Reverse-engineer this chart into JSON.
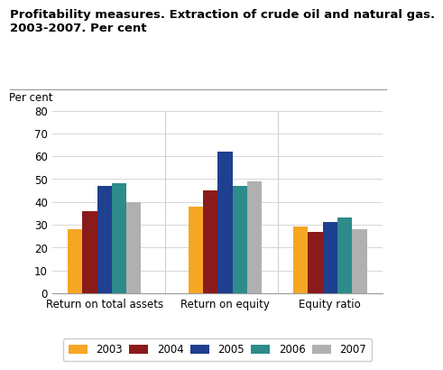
{
  "title": "Profitability measures. Extraction of crude oil and natural gas.\n2003-2007. Per cent",
  "ylabel": "Per cent",
  "categories": [
    "Return on total assets",
    "Return on equity",
    "Equity ratio"
  ],
  "years": [
    "2003",
    "2004",
    "2005",
    "2006",
    "2007"
  ],
  "values": [
    [
      28,
      36,
      47,
      48,
      40
    ],
    [
      38,
      45,
      62,
      47,
      49
    ],
    [
      29,
      27,
      31,
      33,
      28
    ]
  ],
  "colors": [
    "#f5a623",
    "#8b1a1a",
    "#1f3f8f",
    "#2e8b8b",
    "#b0b0b0"
  ],
  "ylim": [
    0,
    80
  ],
  "yticks": [
    0,
    10,
    20,
    30,
    40,
    50,
    60,
    70,
    80
  ],
  "plot_bg": "#ffffff",
  "fig_bg": "#ffffff",
  "title_fontsize": 9.5,
  "label_fontsize": 8.5,
  "tick_fontsize": 8.5,
  "legend_fontsize": 8.5,
  "bar_width": 0.14,
  "group_positions": [
    0.0,
    1.15,
    2.15
  ]
}
